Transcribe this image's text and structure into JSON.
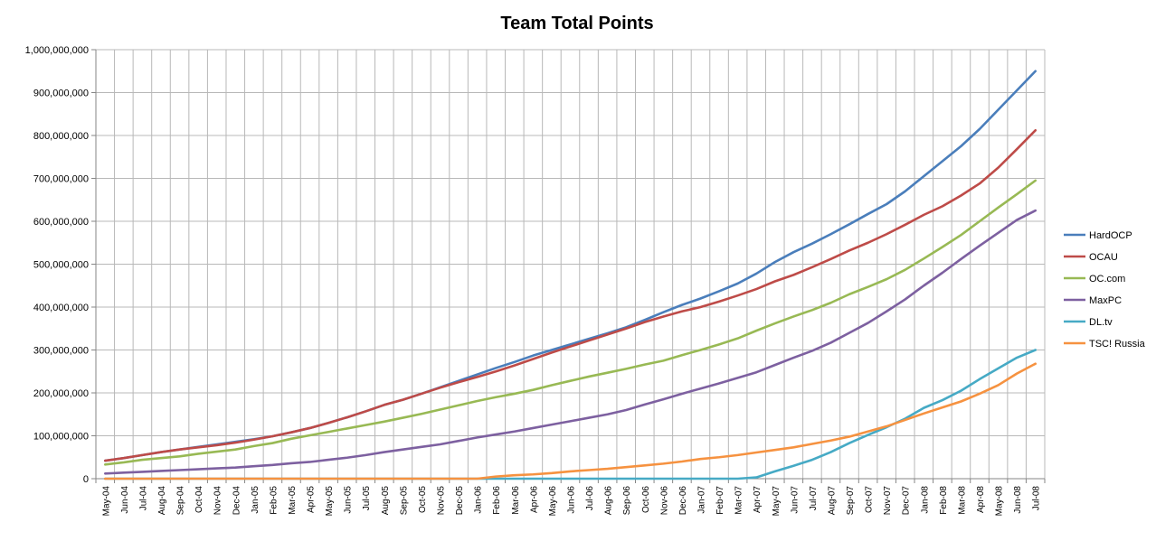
{
  "chart_data": {
    "type": "line",
    "title": "Team Total Points",
    "xlabel": "",
    "ylabel": "",
    "ylim": [
      0,
      1000000000
    ],
    "yticks": [
      0,
      100000000,
      200000000,
      300000000,
      400000000,
      500000000,
      600000000,
      700000000,
      800000000,
      900000000,
      1000000000
    ],
    "ytick_labels": [
      "0",
      "100,000,000",
      "200,000,000",
      "300,000,000",
      "400,000,000",
      "500,000,000",
      "600,000,000",
      "700,000,000",
      "800,000,000",
      "900,000,000",
      "1,000,000,000"
    ],
    "grid": true,
    "legend_position": "right",
    "categories": [
      "May-04",
      "Jun-04",
      "Jul-04",
      "Aug-04",
      "Sep-04",
      "Oct-04",
      "Nov-04",
      "Dec-04",
      "Jan-05",
      "Feb-05",
      "Mar-05",
      "Apr-05",
      "May-05",
      "Jun-05",
      "Jul-05",
      "Aug-05",
      "Sep-05",
      "Oct-05",
      "Nov-05",
      "Dec-05",
      "Jan-06",
      "Feb-06",
      "Mar-06",
      "Apr-06",
      "May-06",
      "Jun-06",
      "Jul-06",
      "Aug-06",
      "Sep-06",
      "Oct-06",
      "Nov-06",
      "Dec-06",
      "Jan-07",
      "Feb-07",
      "Mar-07",
      "Apr-07",
      "May-07",
      "Jun-07",
      "Jul-07",
      "Aug-07",
      "Sep-07",
      "Oct-07",
      "Nov-07",
      "Dec-07",
      "Jan-08",
      "Feb-08",
      "Mar-08",
      "Apr-08",
      "May-08",
      "Jun-08",
      "Jul-08"
    ],
    "series": [
      {
        "name": "HardOCP",
        "color": "#4a7ebb",
        "values": [
          42000000,
          48000000,
          55000000,
          62000000,
          68000000,
          74000000,
          80000000,
          86000000,
          92000000,
          99000000,
          108000000,
          118000000,
          130000000,
          143000000,
          157000000,
          172000000,
          184000000,
          198000000,
          213000000,
          228000000,
          243000000,
          258000000,
          272000000,
          287000000,
          300000000,
          313000000,
          326000000,
          339000000,
          353000000,
          370000000,
          388000000,
          405000000,
          420000000,
          437000000,
          455000000,
          478000000,
          505000000,
          528000000,
          548000000,
          570000000,
          593000000,
          617000000,
          640000000,
          670000000,
          705000000,
          740000000,
          775000000,
          815000000,
          860000000,
          905000000,
          950000000
        ]
      },
      {
        "name": "OCAU",
        "color": "#be4b48",
        "values": [
          42000000,
          48000000,
          55000000,
          62000000,
          68000000,
          73000000,
          78000000,
          84000000,
          91000000,
          99000000,
          108000000,
          118000000,
          130000000,
          143000000,
          157000000,
          172000000,
          184000000,
          198000000,
          212000000,
          225000000,
          237000000,
          250000000,
          264000000,
          279000000,
          294000000,
          308000000,
          322000000,
          336000000,
          350000000,
          365000000,
          378000000,
          390000000,
          400000000,
          413000000,
          427000000,
          442000000,
          460000000,
          475000000,
          493000000,
          512000000,
          532000000,
          550000000,
          570000000,
          592000000,
          615000000,
          635000000,
          660000000,
          688000000,
          725000000,
          768000000,
          812000000
        ]
      },
      {
        "name": "OC.com",
        "color": "#98b954",
        "values": [
          33000000,
          38000000,
          44000000,
          48000000,
          52000000,
          58000000,
          63000000,
          68000000,
          76000000,
          83000000,
          93000000,
          101000000,
          109000000,
          117000000,
          125000000,
          133000000,
          142000000,
          151000000,
          161000000,
          171000000,
          181000000,
          190000000,
          198000000,
          207000000,
          218000000,
          228000000,
          238000000,
          247000000,
          256000000,
          266000000,
          275000000,
          288000000,
          300000000,
          313000000,
          327000000,
          345000000,
          362000000,
          378000000,
          393000000,
          410000000,
          430000000,
          447000000,
          465000000,
          487000000,
          513000000,
          540000000,
          568000000,
          600000000,
          632000000,
          663000000,
          695000000
        ]
      },
      {
        "name": "MaxPC",
        "color": "#7d60a0",
        "values": [
          12000000,
          14000000,
          16000000,
          18000000,
          20000000,
          22000000,
          24000000,
          26000000,
          29000000,
          32000000,
          36000000,
          39000000,
          44000000,
          49000000,
          55000000,
          62000000,
          68000000,
          74000000,
          80000000,
          88000000,
          96000000,
          103000000,
          110000000,
          118000000,
          126000000,
          134000000,
          142000000,
          150000000,
          160000000,
          173000000,
          185000000,
          198000000,
          210000000,
          222000000,
          235000000,
          248000000,
          265000000,
          282000000,
          298000000,
          317000000,
          340000000,
          363000000,
          390000000,
          418000000,
          450000000,
          480000000,
          512000000,
          543000000,
          573000000,
          603000000,
          625000000
        ]
      },
      {
        "name": "DL.tv",
        "color": "#46aac5",
        "values": [
          0,
          0,
          0,
          0,
          0,
          0,
          0,
          0,
          0,
          0,
          0,
          0,
          0,
          0,
          0,
          0,
          0,
          0,
          0,
          0,
          0,
          0,
          0,
          0,
          0,
          0,
          0,
          0,
          0,
          0,
          0,
          0,
          0,
          0,
          0,
          3000000,
          17000000,
          30000000,
          44000000,
          62000000,
          83000000,
          102000000,
          120000000,
          140000000,
          165000000,
          183000000,
          205000000,
          232000000,
          257000000,
          282000000,
          300000000
        ]
      },
      {
        "name": "TSC! Russia",
        "color": "#f69240",
        "values": [
          0,
          0,
          0,
          0,
          0,
          0,
          0,
          0,
          0,
          0,
          0,
          0,
          0,
          0,
          0,
          0,
          0,
          0,
          0,
          0,
          0,
          5000000,
          8000000,
          10000000,
          13000000,
          17000000,
          20000000,
          23000000,
          27000000,
          31000000,
          35000000,
          40000000,
          46000000,
          50000000,
          55000000,
          61000000,
          67000000,
          73000000,
          81000000,
          89000000,
          98000000,
          110000000,
          122000000,
          137000000,
          152000000,
          166000000,
          180000000,
          198000000,
          218000000,
          245000000,
          268000000
        ]
      }
    ]
  }
}
